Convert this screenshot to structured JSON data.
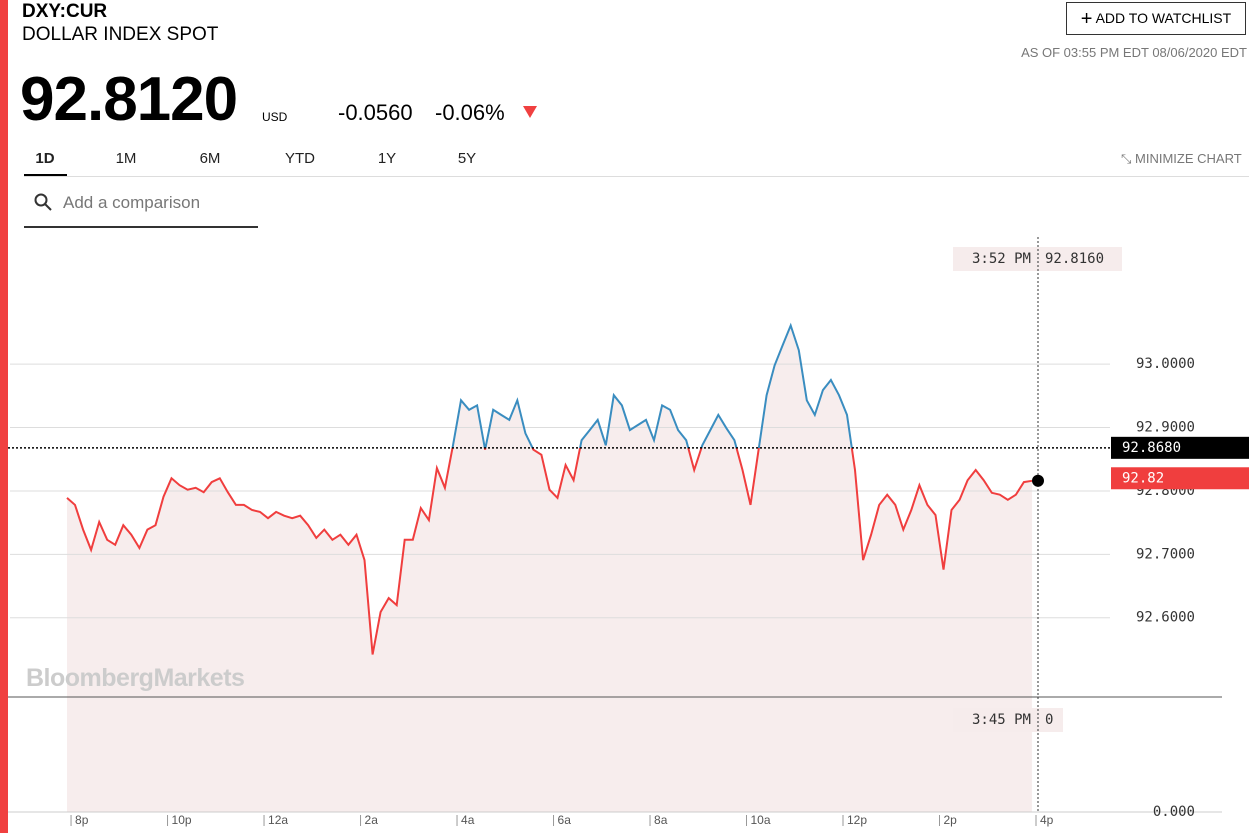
{
  "header": {
    "ticker": "DXY:CUR",
    "name": "DOLLAR INDEX SPOT",
    "price": "92.8120",
    "currency": "USD",
    "change": "-0.0560",
    "change_percent": "-0.06%",
    "watchlist_button": "ADD TO WATCHLIST",
    "as_of": "AS OF 03:55 PM EDT 08/06/2020 EDT"
  },
  "tabs": [
    "1D",
    "1M",
    "6M",
    "YTD",
    "1Y",
    "5Y"
  ],
  "minimize": "MINIMIZE CHART",
  "search_placeholder": "Add a comparison",
  "watermark": "BloombergMarkets",
  "chart_data": {
    "type": "line",
    "categories": [
      null,
      "8p",
      null,
      null,
      null,
      null,
      null,
      null,
      null,
      null,
      null,
      null,
      null,
      "10p",
      null,
      null,
      null,
      null,
      null,
      null,
      null,
      null,
      null,
      null,
      null,
      "12a",
      null,
      null,
      null,
      null,
      null,
      null,
      null,
      null,
      null,
      null,
      null,
      "2a",
      null,
      null,
      null,
      null,
      null,
      null,
      null,
      null,
      null,
      null,
      null,
      "4a",
      null,
      null,
      null,
      null,
      null,
      null,
      null,
      null,
      null,
      null,
      null,
      "6a",
      null,
      null,
      null,
      null,
      null,
      null,
      null,
      null,
      null,
      null,
      null,
      "8a",
      null,
      null,
      null,
      null,
      null,
      null,
      null,
      null,
      null,
      null,
      null,
      "10a",
      null,
      null,
      null,
      null,
      null,
      null,
      null,
      null,
      null,
      null,
      null,
      "12p",
      null,
      null,
      null,
      null,
      null,
      null,
      null,
      null,
      null,
      null,
      null,
      "2p",
      null,
      null,
      null,
      null,
      null,
      null,
      null,
      null,
      null,
      null,
      null,
      "4p"
    ],
    "values": [
      92.789,
      92.778,
      92.739,
      92.707,
      92.751,
      92.723,
      92.715,
      92.746,
      92.731,
      92.71,
      92.739,
      92.746,
      92.791,
      92.82,
      92.809,
      92.802,
      92.805,
      92.798,
      92.814,
      92.82,
      92.798,
      92.778,
      92.778,
      92.77,
      92.767,
      92.757,
      92.767,
      92.761,
      92.757,
      92.761,
      92.746,
      92.726,
      92.739,
      92.723,
      92.731,
      92.715,
      92.731,
      92.691,
      92.542,
      92.609,
      92.631,
      92.62,
      92.723,
      92.723,
      92.773,
      92.754,
      92.836,
      92.805,
      92.872,
      92.943,
      92.928,
      92.935,
      92.865,
      92.928,
      92.92,
      92.912,
      92.943,
      92.891,
      92.865,
      92.857,
      92.802,
      92.789,
      92.841,
      92.817,
      92.88,
      92.896,
      92.912,
      92.872,
      92.951,
      92.935,
      92.896,
      92.904,
      92.912,
      92.88,
      92.935,
      92.928,
      92.896,
      92.88,
      92.833,
      92.872,
      92.896,
      92.92,
      92.899,
      92.88,
      92.833,
      92.778,
      92.865,
      92.951,
      92.998,
      93.03,
      93.061,
      93.022,
      92.943,
      92.92,
      92.959,
      92.975,
      92.951,
      92.92,
      92.833,
      92.691,
      92.731,
      92.778,
      92.794,
      92.778,
      92.739,
      92.77,
      92.809,
      92.778,
      92.762,
      92.676,
      92.77,
      92.786,
      92.817,
      92.833,
      92.817,
      92.797,
      92.794,
      92.786,
      92.794,
      92.814,
      92.816,
      null
    ],
    "color_above": "#3a8dc0",
    "color_below": "#f03e3e",
    "area_color": "#f7eded",
    "ylim": [
      92.475,
      93.21
    ],
    "yticks": [
      {
        "value": 92.6,
        "label": "92.6000"
      },
      {
        "value": 92.7,
        "label": "92.7000"
      },
      {
        "value": 92.8,
        "label": "92.8000"
      },
      {
        "value": 92.9,
        "label": "92.9000"
      },
      {
        "value": 93,
        "label": "93.0000"
      }
    ],
    "grid": true,
    "reference_line": {
      "value": 92.868,
      "label": "92.8680"
    },
    "last_price": 92.82,
    "tooltip": {
      "time": "3:52 PM",
      "value": {
        "value": 92.816,
        "label": "92.8160"
      }
    },
    "volume_yticks": [
      {
        "value": 0,
        "label": "0.000"
      }
    ],
    "volume_tooltip": {
      "time": "3:45 PM",
      "value": 0
    }
  }
}
